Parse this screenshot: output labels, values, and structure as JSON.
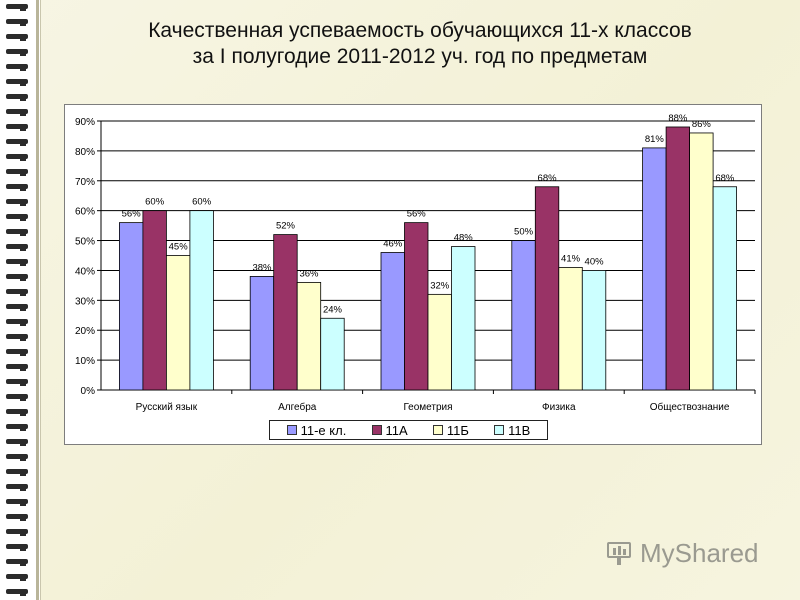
{
  "title_line1": "Качественная успеваемость обучающихся 11-х классов",
  "title_line2": "за I полугодие 2011-2012 уч. год по предметам",
  "watermark": "MyShared",
  "colors": {
    "series1": "#9999ff",
    "series2": "#993366",
    "series3": "#ffffcc",
    "series4": "#ccffff"
  },
  "chart_data": {
    "type": "bar",
    "categories": [
      "Русский язык",
      "Алгебра",
      "Геометрия",
      "Физика",
      "Обществознание"
    ],
    "series": [
      {
        "name": "11-е кл.",
        "values": [
          56,
          38,
          46,
          50,
          81
        ]
      },
      {
        "name": "11А",
        "values": [
          60,
          52,
          56,
          68,
          88
        ]
      },
      {
        "name": "11Б",
        "values": [
          45,
          36,
          32,
          41,
          86
        ]
      },
      {
        "name": "11В",
        "values": [
          60,
          24,
          48,
          40,
          68
        ]
      }
    ],
    "value_labels": [
      [
        "56%",
        "38%",
        "46%",
        "50%",
        "81%"
      ],
      [
        "60%",
        "52%",
        "56%",
        "68%",
        "88%"
      ],
      [
        "45%",
        "36%",
        "32%",
        "41%",
        "86%"
      ],
      [
        "60%",
        "24%",
        "48%",
        "40%",
        "68%"
      ]
    ],
    "y_ticks": [
      "0%",
      "10%",
      "20%",
      "30%",
      "40%",
      "50%",
      "60%",
      "70%",
      "80%",
      "90%"
    ],
    "ylim": [
      0,
      90
    ],
    "grid": true,
    "legend_position": "bottom",
    "title": "",
    "xlabel": "",
    "ylabel": ""
  }
}
